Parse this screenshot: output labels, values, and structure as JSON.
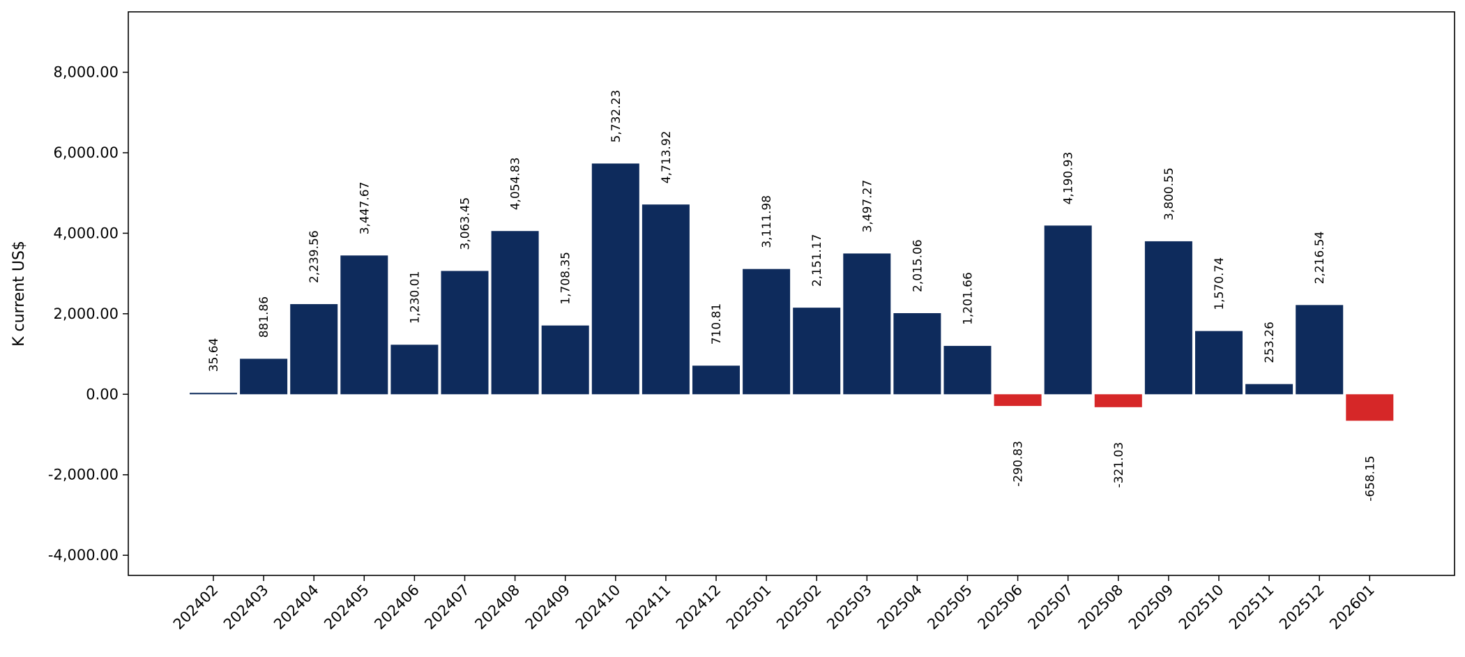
{
  "chart_data": {
    "type": "bar",
    "title": "",
    "xlabel": "",
    "ylabel": "K current US$",
    "ylim": [
      -4500,
      9500
    ],
    "yticks": [
      -4000,
      -2000,
      0,
      2000,
      4000,
      6000,
      8000
    ],
    "ytick_labels": [
      "-4,000.00",
      "-2,000.00",
      "0.00",
      "2,000.00",
      "4,000.00",
      "6,000.00",
      "8,000.00"
    ],
    "grid": false,
    "legend": "none",
    "positive_color": "#0e2b5c",
    "negative_color": "#d62728",
    "categories": [
      "202402",
      "202403",
      "202404",
      "202405",
      "202406",
      "202407",
      "202408",
      "202409",
      "202410",
      "202411",
      "202412",
      "202501",
      "202502",
      "202503",
      "202504",
      "202505",
      "202506",
      "202507",
      "202508",
      "202509",
      "202510",
      "202511",
      "202512",
      "202601"
    ],
    "values": [
      35.64,
      881.86,
      2239.56,
      3447.67,
      1230.01,
      3063.45,
      4054.83,
      1708.35,
      5732.23,
      4713.92,
      710.81,
      3111.98,
      2151.17,
      3497.27,
      2015.06,
      1201.66,
      -290.83,
      4190.93,
      -321.03,
      3800.55,
      1570.74,
      253.26,
      2216.54,
      -658.15
    ],
    "value_labels": [
      "35.64",
      "881.86",
      "2,239.56",
      "3,447.67",
      "1,230.01",
      "3,063.45",
      "4,054.83",
      "1,708.35",
      "5,732.23",
      "4,713.92",
      "710.81",
      "3,111.98",
      "2,151.17",
      "3,497.27",
      "2,015.06",
      "1,201.66",
      "-290.83",
      "4,190.93",
      "-321.03",
      "3,800.55",
      "1,570.74",
      "253.26",
      "2,216.54",
      "-658.15"
    ]
  }
}
